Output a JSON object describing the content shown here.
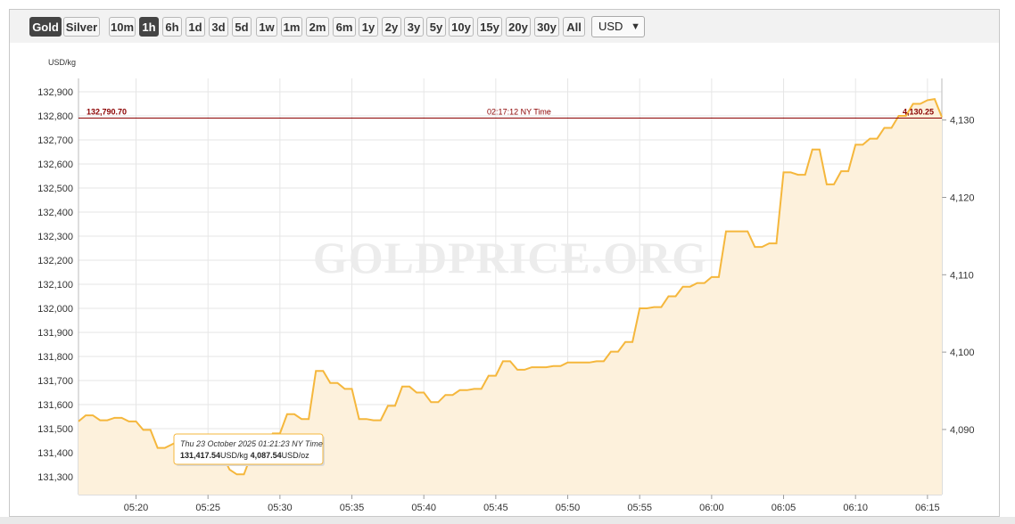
{
  "toolbar": {
    "metal_buttons": [
      "Gold",
      "Silver"
    ],
    "range_buttons": [
      "10m",
      "1h",
      "6h",
      "1d",
      "3d",
      "5d",
      "1w",
      "1m",
      "2m",
      "6m",
      "1y",
      "2y",
      "3y",
      "5y",
      "10y",
      "15y",
      "20y",
      "30y",
      "All"
    ],
    "active_metal": "Gold",
    "active_range": "1h",
    "currency_selected": "USD",
    "chevron_icon": "chevron-down-icon"
  },
  "watermark": "GOLDPRICE.ORG",
  "colors": {
    "line": "#f5b73c",
    "fill": "#fdf1dc",
    "ref_line": "#8b0000",
    "grid": "#e6e6e6",
    "active_button": "#444444"
  },
  "reference": {
    "left_label": "132,790.70",
    "center_label": "02:17:12 NY Time",
    "right_label": "4,130.25"
  },
  "tooltip": {
    "line1": "Thu 23 October 2025 01:21:23 NY Time",
    "kg_value": "131,417.54",
    "kg_unit": "USD/kg",
    "oz_value": "4,087.54",
    "oz_unit": "USD/oz"
  },
  "chart_data": {
    "type": "area",
    "title": "",
    "xlabel": "",
    "ylabel": "USD/kg",
    "ylim": [
      131230,
      132960
    ],
    "y_ticks": [
      131300,
      131400,
      131500,
      131600,
      131700,
      131800,
      131900,
      132000,
      132100,
      132200,
      132300,
      132400,
      132500,
      132600,
      132700,
      132800,
      132900
    ],
    "y_tick_labels": [
      "131,300",
      "131,400",
      "131,500",
      "131,600",
      "131,700",
      "131,800",
      "131,900",
      "132,000",
      "132,100",
      "132,200",
      "132,300",
      "132,400",
      "132,500",
      "132,600",
      "132,700",
      "132,800",
      "132,900"
    ],
    "y2_ticks": [
      4090,
      4100,
      4110,
      4120,
      4130
    ],
    "y2_tick_labels": [
      "4,090",
      "4,100",
      "4,110",
      "4,120",
      "4,130"
    ],
    "y2_unit": "USD/oz",
    "x_range": [
      "05:16",
      "06:16"
    ],
    "x_ticks": [
      "05:20",
      "05:25",
      "05:30",
      "05:35",
      "05:40",
      "05:45",
      "05:50",
      "05:55",
      "06:00",
      "06:05",
      "06:10",
      "06:15"
    ],
    "reference_value": 132790.7,
    "grid": true,
    "series": [
      {
        "x": [
          "05:16:00",
          "05:16:30",
          "05:17:00",
          "05:17:30",
          "05:18:00",
          "05:18:30",
          "05:19:00",
          "05:19:30",
          "05:20:00",
          "05:20:30",
          "05:21:00",
          "05:21:30",
          "05:22:00",
          "05:22:30",
          "05:23:00",
          "05:23:30",
          "05:24:00",
          "05:24:30",
          "05:25:00",
          "05:25:30",
          "05:26:00",
          "05:26:30",
          "05:27:00",
          "05:27:30",
          "05:28:00",
          "05:28:30",
          "05:29:00",
          "05:29:30",
          "05:30:00",
          "05:30:30",
          "05:31:00",
          "05:31:30",
          "05:32:00",
          "05:32:30",
          "05:33:00",
          "05:33:30",
          "05:34:00",
          "05:34:30",
          "05:35:00",
          "05:35:30",
          "05:36:00",
          "05:36:30",
          "05:37:00",
          "05:37:30",
          "05:38:00",
          "05:38:30",
          "05:39:00",
          "05:39:30",
          "05:40:00",
          "05:40:30",
          "05:41:00",
          "05:41:30",
          "05:42:00",
          "05:42:30",
          "05:43:00",
          "05:43:30",
          "05:44:00",
          "05:44:30",
          "05:45:00",
          "05:45:30",
          "05:46:00",
          "05:46:30",
          "05:47:00",
          "05:47:30",
          "05:48:00",
          "05:48:30",
          "05:49:00",
          "05:49:30",
          "05:50:00",
          "05:50:30",
          "05:51:00",
          "05:51:30",
          "05:52:00",
          "05:52:30",
          "05:53:00",
          "05:53:30",
          "05:54:00",
          "05:54:30",
          "05:55:00",
          "05:55:30",
          "05:56:00",
          "05:56:30",
          "05:57:00",
          "05:57:30",
          "05:58:00",
          "05:58:30",
          "05:59:00",
          "05:59:30",
          "06:00:00",
          "06:00:30",
          "06:01:00",
          "06:01:30",
          "06:02:00",
          "06:02:30",
          "06:03:00",
          "06:03:30",
          "06:04:00",
          "06:04:30",
          "06:05:00",
          "06:05:30",
          "06:06:00",
          "06:06:30",
          "06:07:00",
          "06:07:30",
          "06:08:00",
          "06:08:30",
          "06:09:00",
          "06:09:30",
          "06:10:00",
          "06:10:30",
          "06:11:00",
          "06:11:30",
          "06:12:00",
          "06:12:30",
          "06:13:00",
          "06:13:30",
          "06:14:00",
          "06:14:30",
          "06:15:00",
          "06:15:30",
          "06:16:00"
        ],
        "values": [
          131530,
          131555,
          131555,
          131535,
          131535,
          131545,
          131545,
          131530,
          131530,
          131495,
          131495,
          131420,
          131420,
          131435,
          131450,
          131450,
          131410,
          131410,
          131390,
          131390,
          131390,
          131330,
          131310,
          131310,
          131390,
          131390,
          131420,
          131480,
          131480,
          131560,
          131560,
          131540,
          131540,
          131740,
          131740,
          131690,
          131690,
          131665,
          131665,
          131540,
          131540,
          131535,
          131535,
          131595,
          131595,
          131675,
          131675,
          131650,
          131650,
          131610,
          131610,
          131640,
          131640,
          131660,
          131660,
          131665,
          131665,
          131720,
          131720,
          131780,
          131780,
          131745,
          131745,
          131755,
          131755,
          131755,
          131760,
          131760,
          131775,
          131775,
          131775,
          131775,
          131780,
          131780,
          131820,
          131820,
          131860,
          131860,
          132000,
          132000,
          132005,
          132005,
          132050,
          132050,
          132090,
          132090,
          132105,
          132105,
          132130,
          132130,
          132320,
          132320,
          132320,
          132320,
          132255,
          132255,
          132270,
          132270,
          132565,
          132565,
          132555,
          132555,
          132660,
          132660,
          132515,
          132515,
          132570,
          132570,
          132680,
          132680,
          132705,
          132705,
          132750,
          132750,
          132800,
          132800,
          132850,
          132850,
          132865,
          132870,
          132795
        ]
      }
    ]
  }
}
